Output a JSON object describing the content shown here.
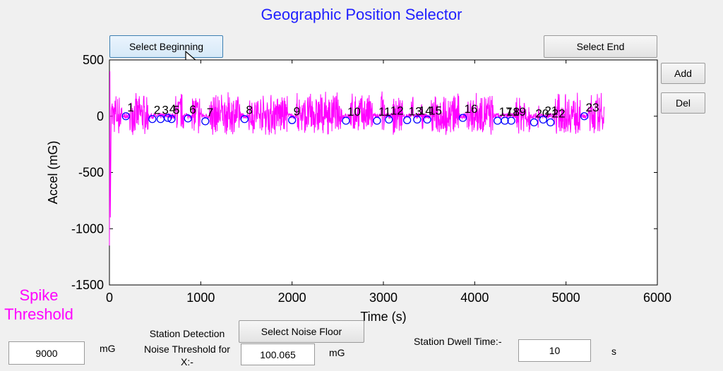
{
  "window": {
    "title": "Geographic Position Selector"
  },
  "buttons": {
    "select_beginning": "Select Beginning",
    "select_end": "Select End",
    "add": "Add",
    "del": "Del",
    "select_noise_floor": "Select Noise Floor"
  },
  "spike": {
    "line1": "Spike",
    "line2": "Threshold",
    "value": "9000",
    "unit": "mG"
  },
  "noise": {
    "label_line1": "Station Detection",
    "label_line2": "Noise Threshold for",
    "label_line3": "X:-",
    "value": "100.065",
    "unit": "mG"
  },
  "dwell": {
    "label": "Station Dwell Time:-",
    "value": "10",
    "unit": "s"
  },
  "chart_data": {
    "type": "line",
    "xlabel": "Time (s)",
    "ylabel": "Accel (mG)",
    "xlim": [
      0,
      6000
    ],
    "ylim": [
      -1500,
      500
    ],
    "xticks": [
      "0",
      "1000",
      "2000",
      "3000",
      "4000",
      "5000",
      "6000"
    ],
    "yticks": [
      "500",
      "0",
      "-500",
      "-1000",
      "-1500"
    ],
    "grid": false,
    "series_color": "#ff00ff",
    "marker_color": "#0000ff",
    "data_extent_x": [
      0,
      5420
    ],
    "stations": [
      {
        "label": "1",
        "x": 180,
        "y": 0
      },
      {
        "label": "2",
        "x": 470,
        "y": -25
      },
      {
        "label": "3",
        "x": 560,
        "y": -25
      },
      {
        "label": "4",
        "x": 640,
        "y": -15
      },
      {
        "label": "5",
        "x": 680,
        "y": -25
      },
      {
        "label": "6",
        "x": 860,
        "y": -20
      },
      {
        "label": "7",
        "x": 1050,
        "y": -45
      },
      {
        "label": "8",
        "x": 1480,
        "y": -25
      },
      {
        "label": "9",
        "x": 2000,
        "y": -35
      },
      {
        "label": "10",
        "x": 2590,
        "y": -40
      },
      {
        "label": "11",
        "x": 2930,
        "y": -40
      },
      {
        "label": "12",
        "x": 3060,
        "y": -30
      },
      {
        "label": "13",
        "x": 3260,
        "y": -35
      },
      {
        "label": "14",
        "x": 3370,
        "y": -30
      },
      {
        "label": "15",
        "x": 3480,
        "y": -30
      },
      {
        "label": "16",
        "x": 3870,
        "y": -15
      },
      {
        "label": "17",
        "x": 4250,
        "y": -40
      },
      {
        "label": "18",
        "x": 4330,
        "y": -40
      },
      {
        "label": "19",
        "x": 4400,
        "y": -40
      },
      {
        "label": "20",
        "x": 4650,
        "y": -55
      },
      {
        "label": "21",
        "x": 4750,
        "y": -30
      },
      {
        "label": "22",
        "x": 4830,
        "y": -55
      },
      {
        "label": "23",
        "x": 5200,
        "y": 0
      }
    ]
  }
}
